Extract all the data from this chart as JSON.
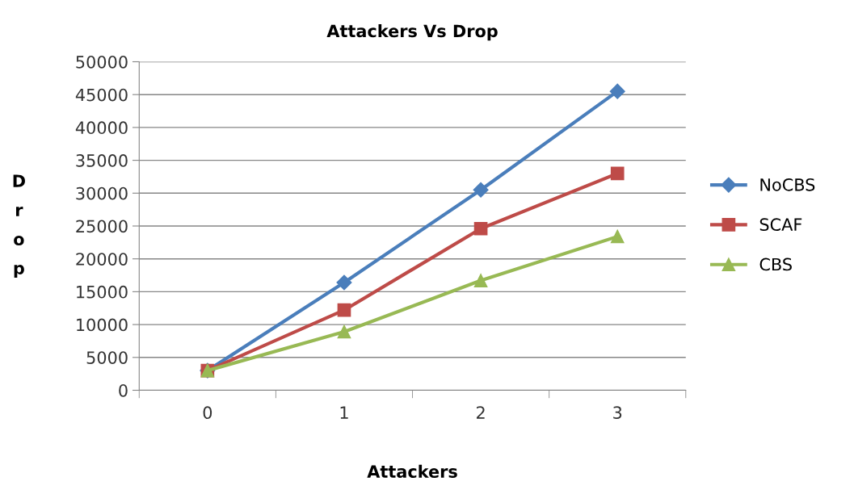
{
  "chart_data": {
    "type": "line",
    "title": "Attackers Vs Drop",
    "xlabel": "Attackers",
    "ylabel": "Drop",
    "categories": [
      "0",
      "1",
      "2",
      "3"
    ],
    "series": [
      {
        "name": "NoCBS",
        "color": "#4a7ebb",
        "marker": "diamond",
        "values": [
          3000,
          16400,
          30500,
          45500
        ]
      },
      {
        "name": "SCAF",
        "color": "#be4b48",
        "marker": "square",
        "values": [
          3000,
          12200,
          24600,
          33000
        ]
      },
      {
        "name": "CBS",
        "color": "#98b954",
        "marker": "triangle",
        "values": [
          3000,
          8900,
          16700,
          23400
        ]
      }
    ],
    "ylim": [
      0,
      50000
    ],
    "yticks": [
      0,
      5000,
      10000,
      15000,
      20000,
      25000,
      30000,
      35000,
      40000,
      45000,
      50000
    ],
    "grid": "y",
    "legend": "right"
  }
}
